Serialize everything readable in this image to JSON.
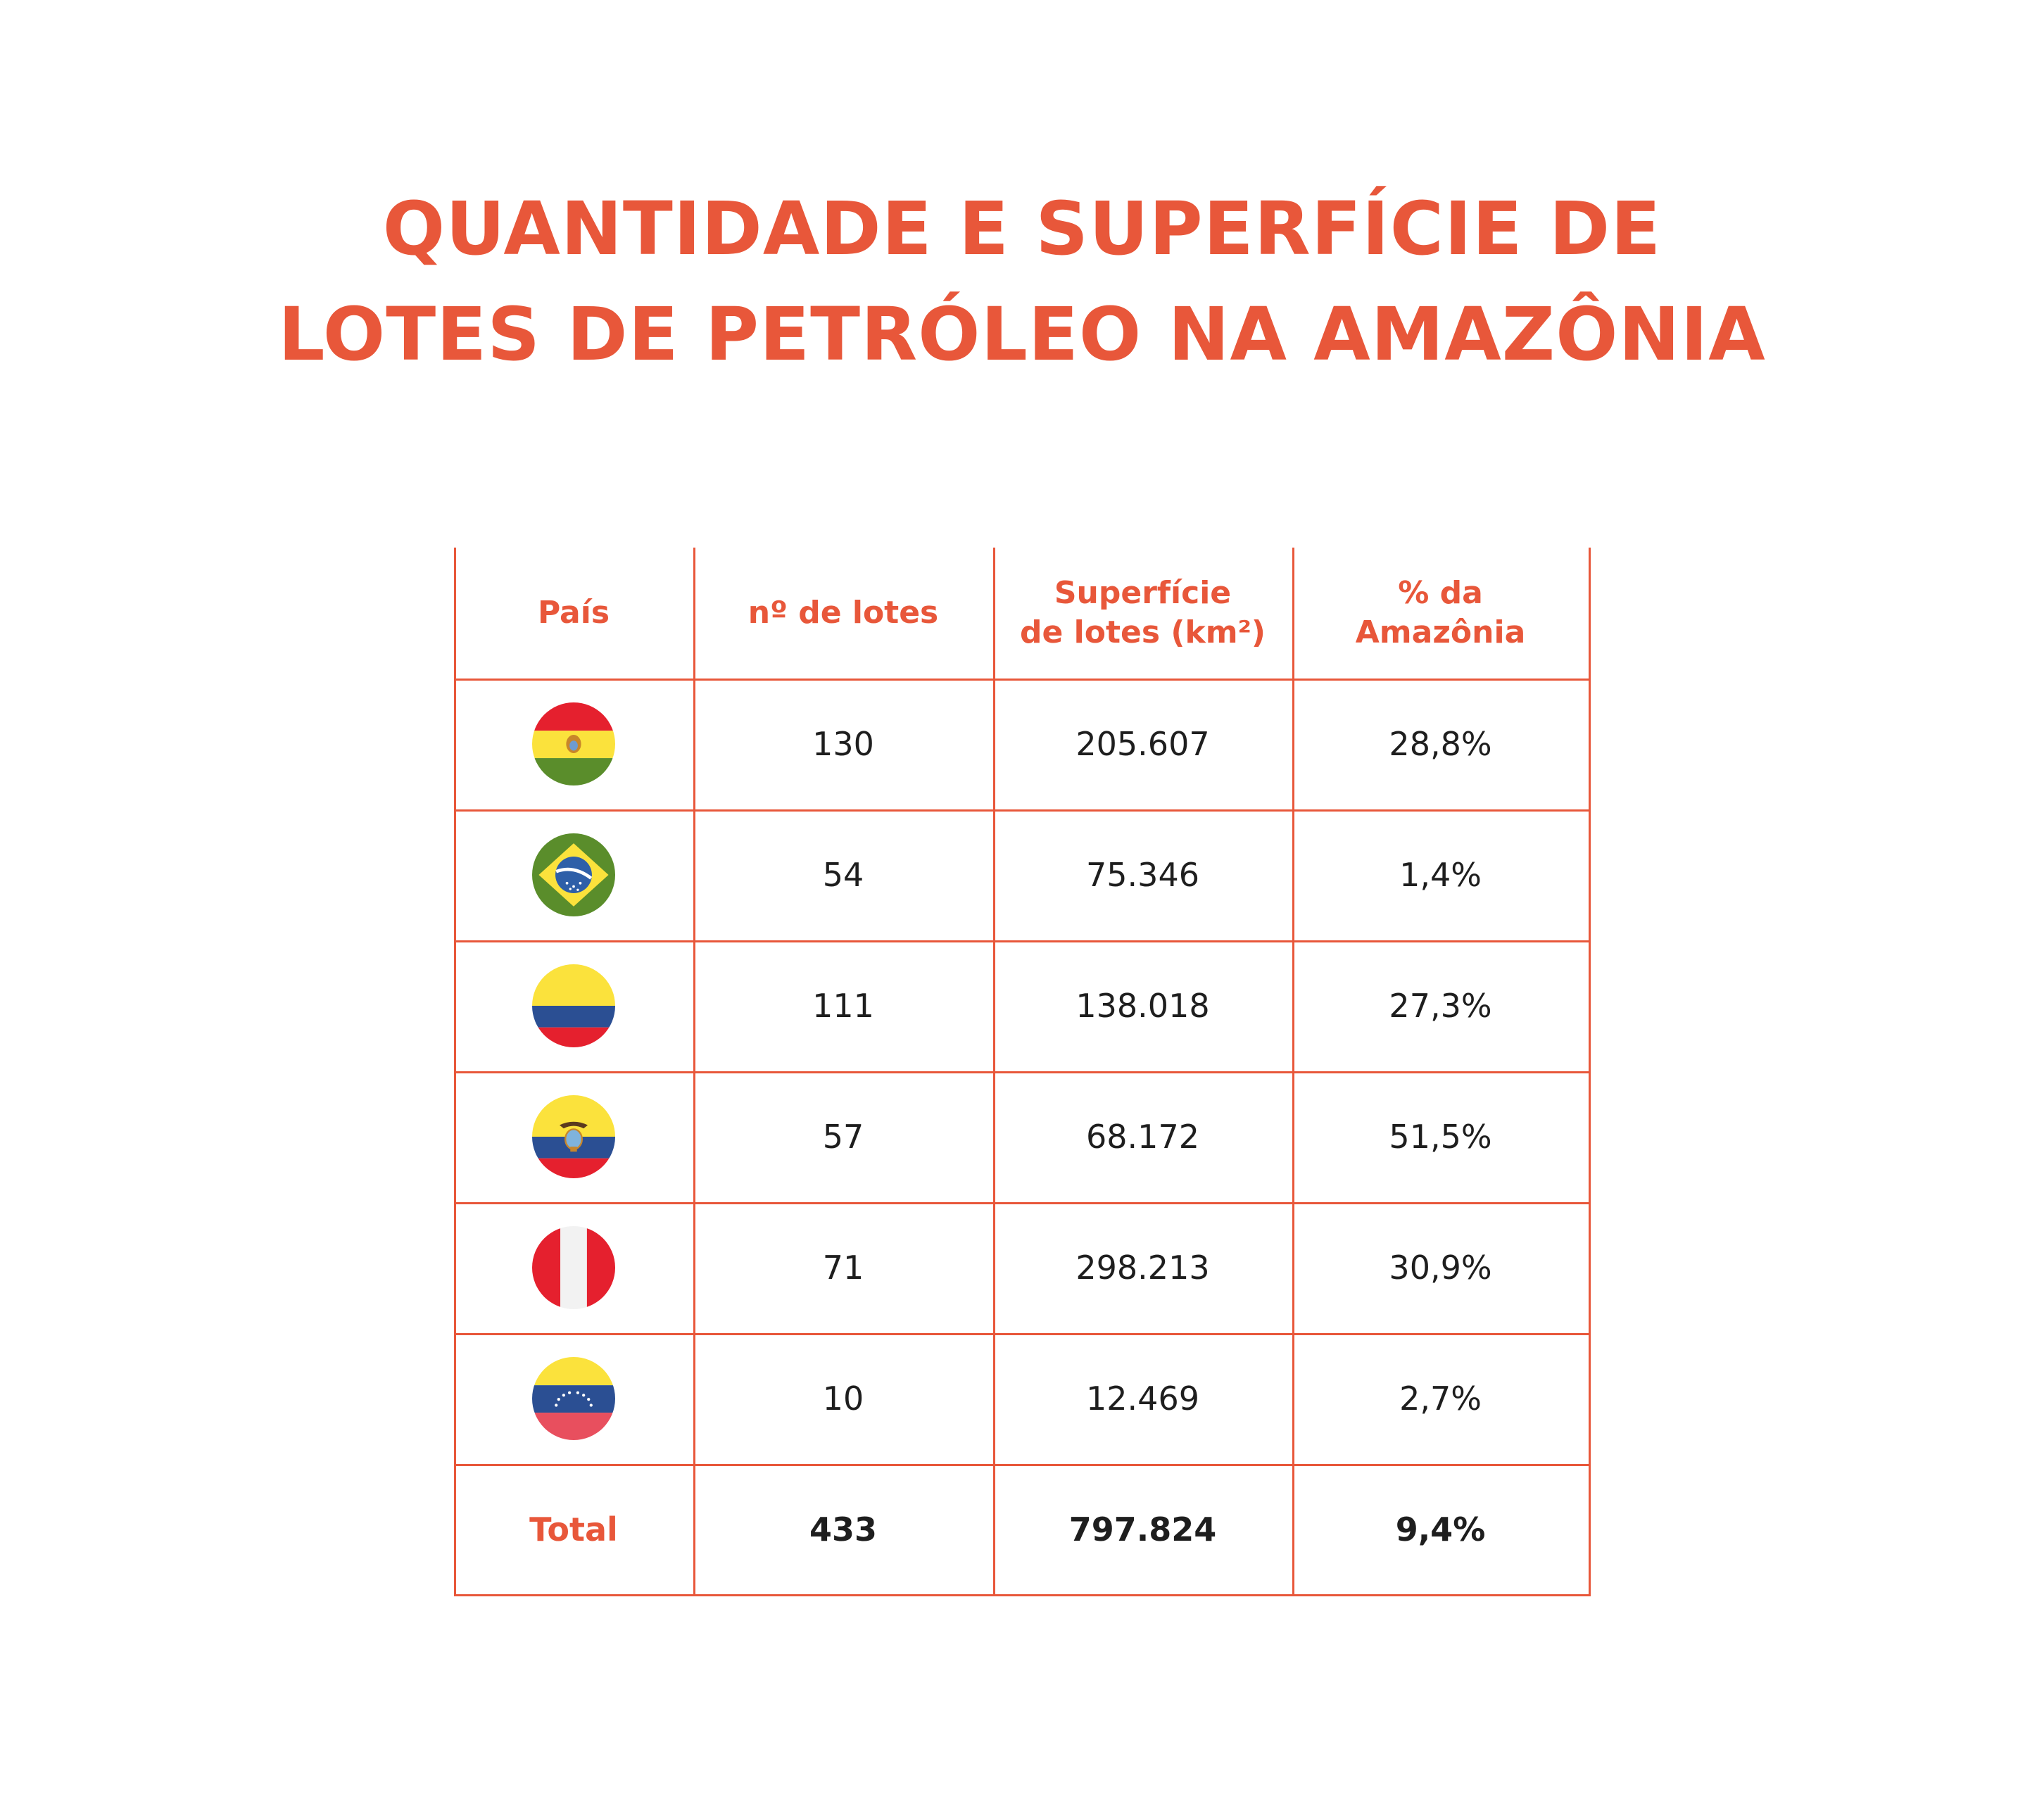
{
  "title": {
    "line1": "QUANTIDADE E SUPERFÍCIE DE",
    "line2": "LOTES DE PETRÓLEO NA AMAZÔNIA"
  },
  "headers": {
    "pais": "País",
    "lotes": "nº de lotes",
    "superficie_line1": "Superfície",
    "superficie_line2": "de lotes (km²)",
    "pct_line1": "% da",
    "pct_line2": "Amazônia"
  },
  "rows": [
    {
      "flag": "bolivia-flag-icon",
      "lotes": "130",
      "superficie": "205.607",
      "pct": "28,8%"
    },
    {
      "flag": "brazil-flag-icon",
      "lotes": "54",
      "superficie": "75.346",
      "pct": "1,4%"
    },
    {
      "flag": "colombia-flag-icon",
      "lotes": "111",
      "superficie": "138.018",
      "pct": "27,3%"
    },
    {
      "flag": "ecuador-flag-icon",
      "lotes": "57",
      "superficie": "68.172",
      "pct": "51,5%"
    },
    {
      "flag": "peru-flag-icon",
      "lotes": "71",
      "superficie": "298.213",
      "pct": "30,9%"
    },
    {
      "flag": "venezuela-flag-icon",
      "lotes": "10",
      "superficie": "12.469",
      "pct": "2,7%"
    }
  ],
  "total": {
    "label": "Total",
    "lotes": "433",
    "superficie": "797.824",
    "pct": "9,4%"
  },
  "colors": {
    "accent": "#e8573a",
    "text": "#1e1e1e"
  },
  "chart_data": {
    "type": "table",
    "title": "QUANTIDADE E SUPERFÍCIE DE LOTES DE PETRÓLEO NA AMAZÔNIA",
    "columns": [
      "País",
      "nº de lotes",
      "Superfície de lotes (km²)",
      "% da Amazônia"
    ],
    "rows": [
      [
        "bolivia-flag-icon",
        130,
        205607,
        28.8
      ],
      [
        "brazil-flag-icon",
        54,
        75346,
        1.4
      ],
      [
        "colombia-flag-icon",
        111,
        138018,
        27.3
      ],
      [
        "ecuador-flag-icon",
        57,
        68172,
        51.5
      ],
      [
        "peru-flag-icon",
        71,
        298213,
        30.9
      ],
      [
        "venezuela-flag-icon",
        10,
        12469,
        2.7
      ]
    ],
    "total": [
      "Total",
      433,
      797824,
      9.4
    ]
  }
}
